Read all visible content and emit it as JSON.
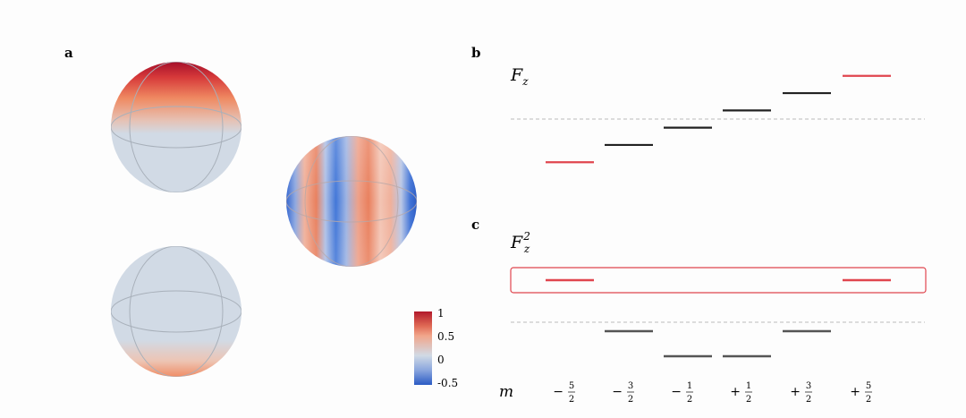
{
  "panels": {
    "a": "a",
    "b": "b",
    "c": "c"
  },
  "axis_labels": {
    "fz_base": "F",
    "fz_sub": "z",
    "fz2_base": "F",
    "fz2_sub": "z",
    "fz2_sup": "2",
    "m": "m"
  },
  "colorbar": {
    "ticks": [
      "1",
      "0.5",
      "0",
      "-0.5"
    ],
    "tick_values": [
      1,
      0.5,
      0,
      -0.5
    ],
    "colors": {
      "top": "#b2182b",
      "mid_high": "#ef8a62",
      "zero": "#d1dae5",
      "low": "#2166ac"
    }
  },
  "m_ticks": [
    {
      "sign": "−",
      "num": "5",
      "den": "2"
    },
    {
      "sign": "−",
      "num": "3",
      "den": "2"
    },
    {
      "sign": "−",
      "num": "1",
      "den": "2"
    },
    {
      "sign": "+",
      "num": "1",
      "den": "2"
    },
    {
      "sign": "+",
      "num": "3",
      "den": "2"
    },
    {
      "sign": "+",
      "num": "5",
      "den": "2"
    }
  ],
  "colors": {
    "highlight": "#e0454e",
    "level_b": "#222222",
    "level_c": "#555555",
    "dashed": "#bbbbbb",
    "sphere_base": "#d1dae5",
    "sphere_grid": "#a8b0ba",
    "red_dark": "#b2182b",
    "red_mid": "#ef8a62",
    "blue": "#2b63c9"
  },
  "chart_data": [
    {
      "type": "levels",
      "panel": "b",
      "m": [
        -2.5,
        -1.5,
        -0.5,
        0.5,
        1.5,
        2.5
      ],
      "values": [
        -2.5,
        -1.5,
        -0.5,
        0.5,
        1.5,
        2.5
      ],
      "highlighted_m": [
        -2.5,
        2.5
      ]
    },
    {
      "type": "levels",
      "panel": "c",
      "m": [
        -2.5,
        -1.5,
        -0.5,
        0.5,
        1.5,
        2.5
      ],
      "values": [
        6.25,
        2.25,
        0.25,
        0.25,
        2.25,
        6.25
      ],
      "highlighted_m": [
        -2.5,
        2.5
      ]
    }
  ]
}
